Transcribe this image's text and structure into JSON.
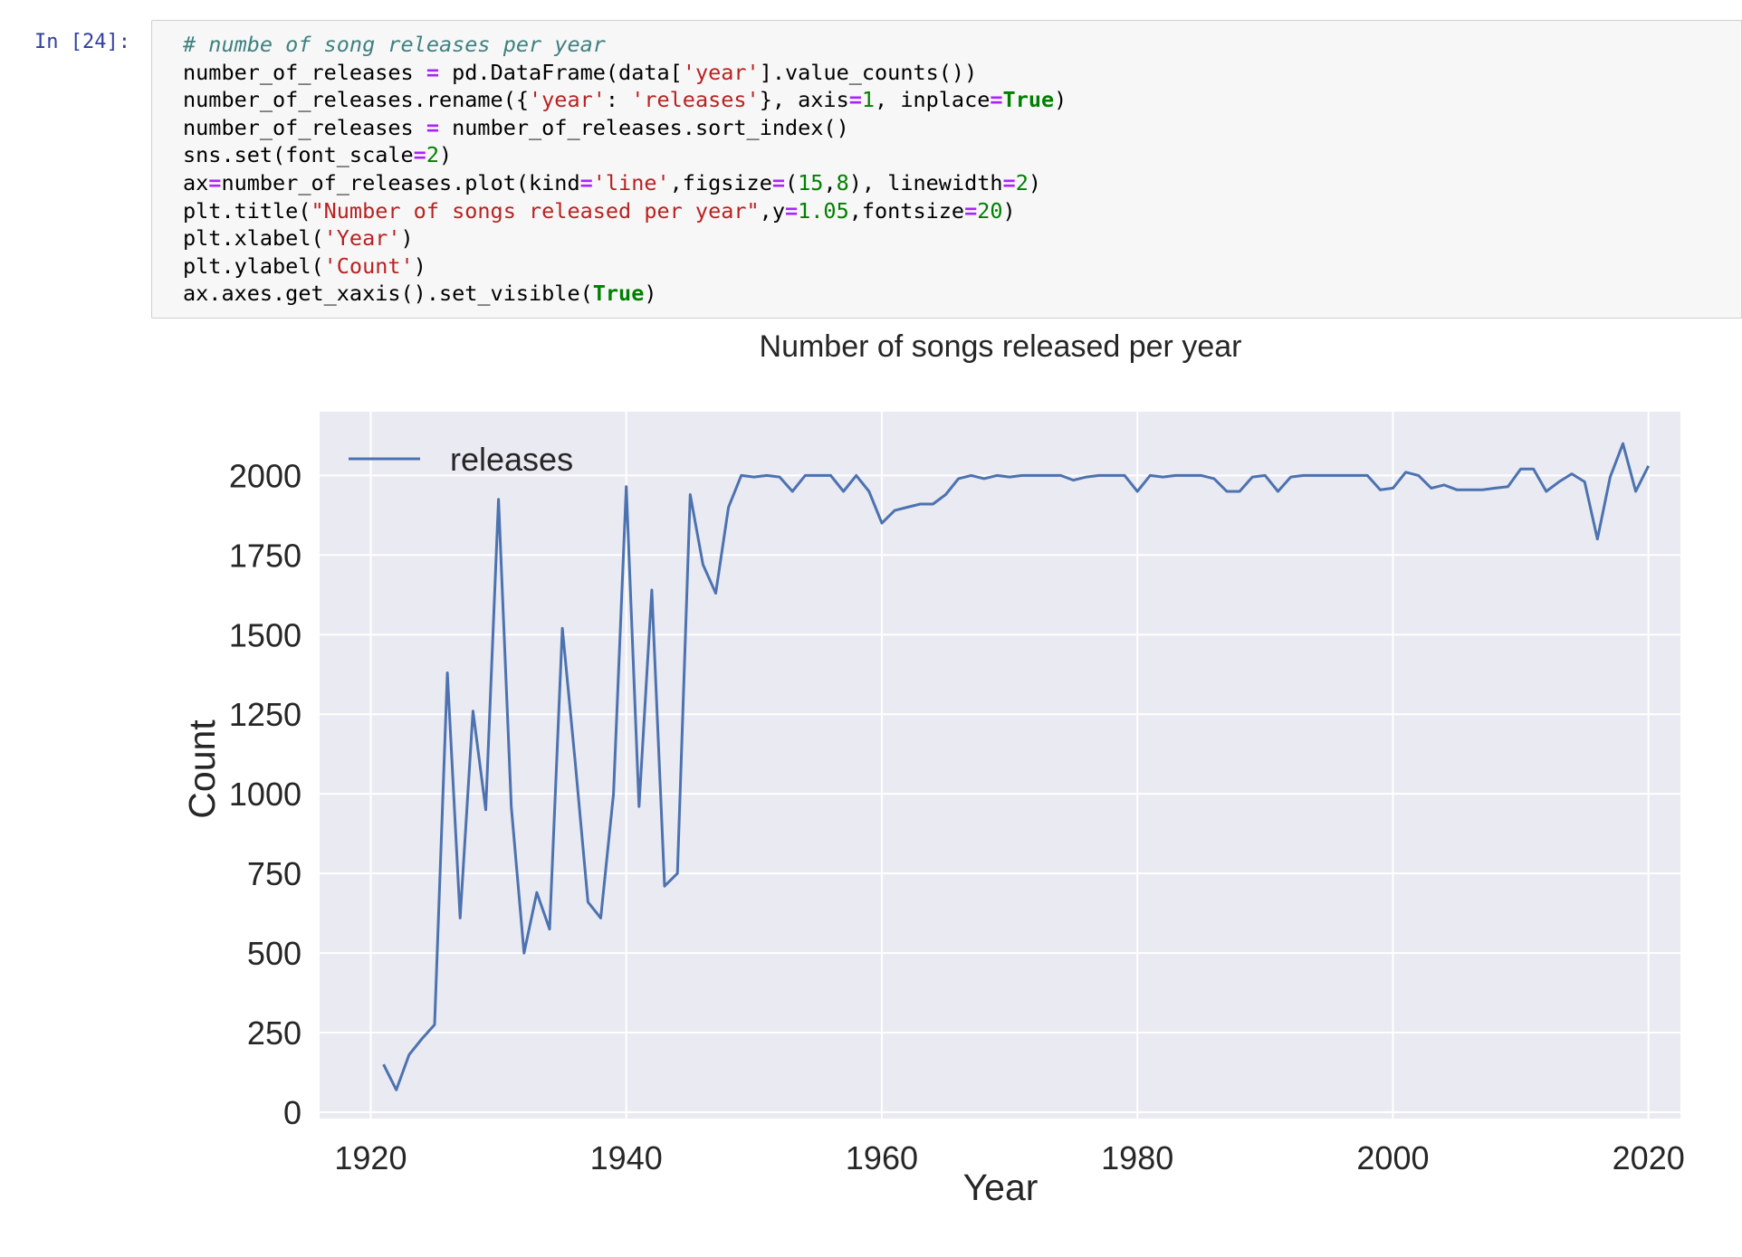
{
  "cell": {
    "prompt": "In [24]:",
    "collapser_icon": "triangle-down",
    "code_lines": [
      [
        {
          "t": "c",
          "v": "# numbe of song releases per year"
        }
      ],
      [
        {
          "t": "p",
          "v": "number_of_releases "
        },
        {
          "t": "o",
          "v": "="
        },
        {
          "t": "p",
          "v": " pd.DataFrame(data["
        },
        {
          "t": "s",
          "v": "'year'"
        },
        {
          "t": "p",
          "v": "].value_counts())"
        }
      ],
      [
        {
          "t": "p",
          "v": "number_of_releases.rename({"
        },
        {
          "t": "s",
          "v": "'year'"
        },
        {
          "t": "p",
          "v": ": "
        },
        {
          "t": "s",
          "v": "'releases'"
        },
        {
          "t": "p",
          "v": "}, axis"
        },
        {
          "t": "o",
          "v": "="
        },
        {
          "t": "n",
          "v": "1"
        },
        {
          "t": "p",
          "v": ", inplace"
        },
        {
          "t": "o",
          "v": "="
        },
        {
          "t": "k",
          "v": "True"
        },
        {
          "t": "p",
          "v": ")"
        }
      ],
      [
        {
          "t": "p",
          "v": "number_of_releases "
        },
        {
          "t": "o",
          "v": "="
        },
        {
          "t": "p",
          "v": " number_of_releases.sort_index()"
        }
      ],
      [
        {
          "t": "p",
          "v": "sns.set(font_scale"
        },
        {
          "t": "o",
          "v": "="
        },
        {
          "t": "n",
          "v": "2"
        },
        {
          "t": "p",
          "v": ")"
        }
      ],
      [
        {
          "t": "p",
          "v": "ax"
        },
        {
          "t": "o",
          "v": "="
        },
        {
          "t": "p",
          "v": "number_of_releases.plot(kind"
        },
        {
          "t": "o",
          "v": "="
        },
        {
          "t": "s",
          "v": "'line'"
        },
        {
          "t": "p",
          "v": ",figsize"
        },
        {
          "t": "o",
          "v": "="
        },
        {
          "t": "p",
          "v": "("
        },
        {
          "t": "n",
          "v": "15"
        },
        {
          "t": "p",
          "v": ","
        },
        {
          "t": "n",
          "v": "8"
        },
        {
          "t": "p",
          "v": "), linewidth"
        },
        {
          "t": "o",
          "v": "="
        },
        {
          "t": "n",
          "v": "2"
        },
        {
          "t": "p",
          "v": ")"
        }
      ],
      [
        {
          "t": "p",
          "v": "plt.title("
        },
        {
          "t": "s",
          "v": "\"Number of songs released per year\""
        },
        {
          "t": "p",
          "v": ",y"
        },
        {
          "t": "o",
          "v": "="
        },
        {
          "t": "n",
          "v": "1.05"
        },
        {
          "t": "p",
          "v": ",fontsize"
        },
        {
          "t": "o",
          "v": "="
        },
        {
          "t": "n",
          "v": "20"
        },
        {
          "t": "p",
          "v": ")"
        }
      ],
      [
        {
          "t": "p",
          "v": "plt.xlabel("
        },
        {
          "t": "s",
          "v": "'Year'"
        },
        {
          "t": "p",
          "v": ")"
        }
      ],
      [
        {
          "t": "p",
          "v": "plt.ylabel("
        },
        {
          "t": "s",
          "v": "'Count'"
        },
        {
          "t": "p",
          "v": ")"
        }
      ],
      [
        {
          "t": "p",
          "v": "ax.axes.get_xaxis().set_visible("
        },
        {
          "t": "k",
          "v": "True"
        },
        {
          "t": "p",
          "v": ")"
        }
      ]
    ]
  },
  "colors": {
    "line": "#4c72b0",
    "plot_bg": "#eaeaf2",
    "grid": "#ffffff",
    "text": "#262626"
  },
  "chart_data": {
    "type": "line",
    "title": "Number of songs released per year",
    "xlabel": "Year",
    "ylabel": "Count",
    "xlim": [
      1916,
      2022.5
    ],
    "ylim": [
      -20,
      2200
    ],
    "xticks": [
      1920,
      1940,
      1960,
      1980,
      2000,
      2020
    ],
    "yticks": [
      0,
      250,
      500,
      750,
      1000,
      1250,
      1500,
      1750,
      2000
    ],
    "grid": true,
    "legend": {
      "position": "top-left",
      "entries": [
        "releases"
      ]
    },
    "series": [
      {
        "name": "releases",
        "x": [
          1921,
          1922,
          1923,
          1924,
          1925,
          1926,
          1927,
          1928,
          1929,
          1930,
          1931,
          1932,
          1933,
          1934,
          1935,
          1936,
          1937,
          1938,
          1939,
          1940,
          1941,
          1942,
          1943,
          1944,
          1945,
          1946,
          1947,
          1948,
          1949,
          1950,
          1951,
          1952,
          1953,
          1954,
          1955,
          1956,
          1957,
          1958,
          1959,
          1960,
          1961,
          1962,
          1963,
          1964,
          1965,
          1966,
          1967,
          1968,
          1969,
          1970,
          1971,
          1972,
          1973,
          1974,
          1975,
          1976,
          1977,
          1978,
          1979,
          1980,
          1981,
          1982,
          1983,
          1984,
          1985,
          1986,
          1987,
          1988,
          1989,
          1990,
          1991,
          1992,
          1993,
          1994,
          1995,
          1996,
          1997,
          1998,
          1999,
          2000,
          2001,
          2002,
          2003,
          2004,
          2005,
          2006,
          2007,
          2008,
          2009,
          2010,
          2011,
          2012,
          2013,
          2014,
          2015,
          2016,
          2017,
          2018,
          2019,
          2020
        ],
        "values": [
          150,
          70,
          180,
          230,
          275,
          1380,
          610,
          1260,
          950,
          1925,
          960,
          500,
          690,
          575,
          1520,
          1100,
          660,
          610,
          1000,
          1965,
          960,
          1640,
          710,
          750,
          1940,
          1720,
          1630,
          1900,
          2000,
          1995,
          2000,
          1995,
          1950,
          2000,
          2000,
          2000,
          1950,
          2000,
          1950,
          1850,
          1890,
          1900,
          1910,
          1910,
          1940,
          1990,
          2000,
          1990,
          2000,
          1995,
          2000,
          2000,
          2000,
          2000,
          1985,
          1995,
          2000,
          2000,
          2000,
          1950,
          2000,
          1995,
          2000,
          2000,
          2000,
          1990,
          1950,
          1950,
          1995,
          2000,
          1950,
          1995,
          2000,
          2000,
          2000,
          2000,
          2000,
          2000,
          1955,
          1960,
          2010,
          2000,
          1960,
          1970,
          1955,
          1955,
          1955,
          1960,
          1965,
          2020,
          2020,
          1950,
          1980,
          2005,
          1980,
          1800,
          1995,
          2100,
          1950,
          2030
        ]
      }
    ]
  }
}
